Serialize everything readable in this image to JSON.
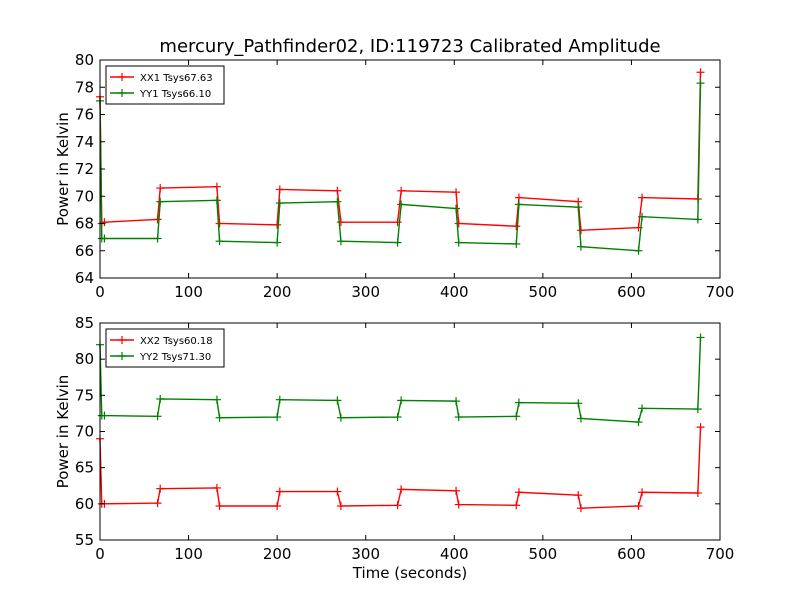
{
  "figure": {
    "title": "mercury_Pathfinder02, ID:119723 Calibrated Amplitude"
  },
  "chart_data": [
    {
      "type": "line",
      "title": "mercury_Pathfinder02, ID:119723 Calibrated Amplitude",
      "xlabel": "",
      "ylabel": "Power in Kelvin",
      "xlim": [
        0,
        700
      ],
      "ylim": [
        64,
        80
      ],
      "xticks": [
        0,
        100,
        200,
        300,
        400,
        500,
        600,
        700
      ],
      "yticks": [
        64,
        66,
        68,
        70,
        72,
        74,
        76,
        78,
        80
      ],
      "grid": false,
      "legend": "top-left",
      "marker": "+",
      "series": [
        {
          "name": "XX1 Tsys67.63",
          "color": "#ff0000",
          "x": [
            0,
            2,
            5,
            65,
            68,
            132,
            135,
            200,
            203,
            268,
            272,
            336,
            340,
            402,
            405,
            470,
            473,
            540,
            543,
            608,
            612,
            675,
            678
          ],
          "y": [
            77.3,
            68.0,
            68.1,
            68.3,
            70.6,
            70.7,
            68.0,
            67.9,
            70.5,
            70.4,
            68.1,
            68.1,
            70.4,
            70.3,
            68.0,
            67.8,
            69.9,
            69.6,
            67.5,
            67.7,
            69.9,
            69.8,
            79.1
          ]
        },
        {
          "name": "YY1 Tsys66.10",
          "color": "#008000",
          "x": [
            0,
            2,
            5,
            65,
            68,
            132,
            135,
            200,
            203,
            268,
            272,
            336,
            340,
            402,
            405,
            470,
            473,
            540,
            543,
            608,
            612,
            675,
            678
          ],
          "y": [
            77.0,
            66.9,
            66.9,
            66.9,
            69.6,
            69.7,
            66.7,
            66.6,
            69.5,
            69.6,
            66.7,
            66.6,
            69.4,
            69.1,
            66.6,
            66.5,
            69.4,
            69.2,
            66.3,
            66.0,
            68.5,
            68.3,
            78.3
          ]
        }
      ]
    },
    {
      "type": "line",
      "title": "",
      "xlabel": "Time (seconds)",
      "ylabel": "Power in Kelvin",
      "xlim": [
        0,
        700
      ],
      "ylim": [
        55,
        85
      ],
      "xticks": [
        0,
        100,
        200,
        300,
        400,
        500,
        600,
        700
      ],
      "yticks": [
        55,
        60,
        65,
        70,
        75,
        80,
        85
      ],
      "grid": false,
      "legend": "top-left",
      "marker": "+",
      "series": [
        {
          "name": "XX2 Tsys60.18",
          "color": "#ff0000",
          "x": [
            0,
            2,
            5,
            65,
            68,
            132,
            135,
            200,
            203,
            268,
            272,
            336,
            340,
            402,
            405,
            470,
            473,
            540,
            543,
            608,
            612,
            675,
            678
          ],
          "y": [
            69.0,
            60.0,
            60.0,
            60.1,
            62.1,
            62.2,
            59.7,
            59.7,
            61.7,
            61.7,
            59.7,
            59.8,
            62.0,
            61.8,
            59.9,
            59.8,
            61.6,
            61.2,
            59.4,
            59.7,
            61.6,
            61.5,
            70.6
          ]
        },
        {
          "name": "YY2 Tsys71.30",
          "color": "#008000",
          "x": [
            0,
            2,
            5,
            65,
            68,
            132,
            135,
            200,
            203,
            268,
            272,
            336,
            340,
            402,
            405,
            470,
            473,
            540,
            543,
            608,
            612,
            675,
            678
          ],
          "y": [
            82.0,
            72.2,
            72.2,
            72.1,
            74.5,
            74.4,
            71.9,
            72.0,
            74.4,
            74.3,
            71.9,
            72.0,
            74.3,
            74.2,
            72.0,
            72.1,
            74.0,
            73.9,
            71.8,
            71.3,
            73.2,
            73.1,
            83.0
          ]
        }
      ]
    }
  ]
}
